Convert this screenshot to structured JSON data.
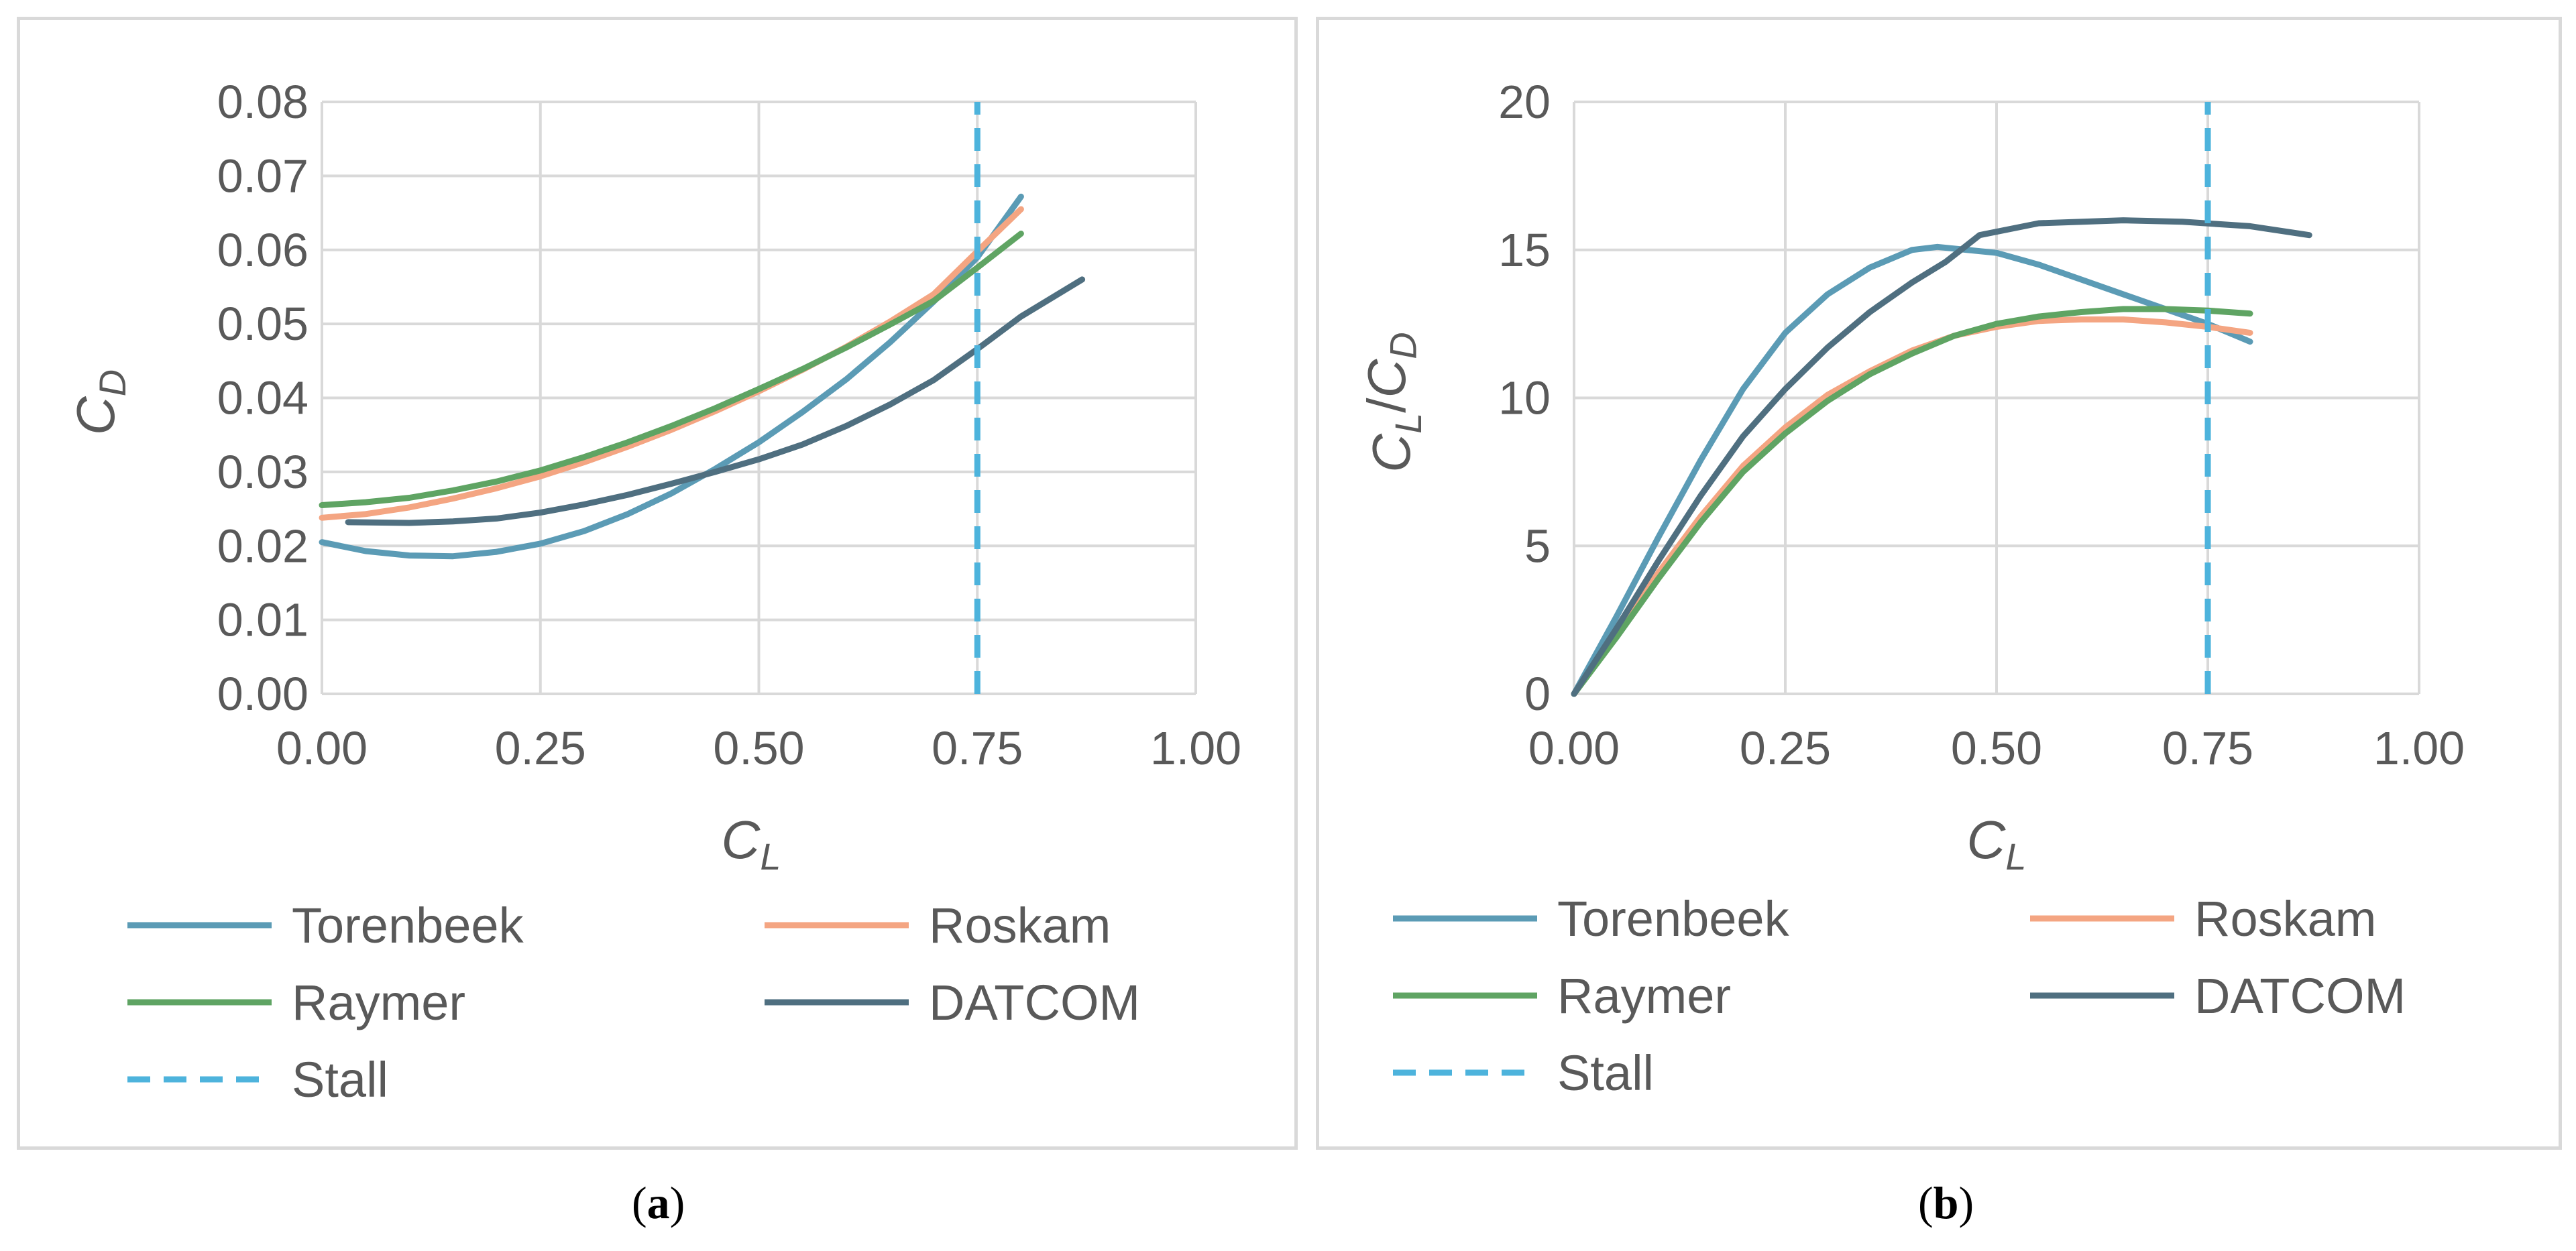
{
  "captions": [
    "a",
    "b"
  ],
  "chart_data": [
    {
      "type": "line",
      "panel": "a",
      "title": "",
      "xlabel": {
        "main": "C",
        "sub": "L"
      },
      "ylabel": {
        "main": "C",
        "sub": "D"
      },
      "xlim": [
        0,
        1
      ],
      "ylim": [
        0,
        0.08
      ],
      "xticks": [
        0,
        0.25,
        0.5,
        0.75,
        1.0
      ],
      "yticks": [
        0,
        0.01,
        0.02,
        0.03,
        0.04,
        0.05,
        0.06,
        0.07,
        0.08
      ],
      "xtick_labels": [
        "0.00",
        "0.25",
        "0.50",
        "0.75",
        "1.00"
      ],
      "ytick_labels": [
        "0.00",
        "0.01",
        "0.02",
        "0.03",
        "0.04",
        "0.05",
        "0.06",
        "0.07",
        "0.08"
      ],
      "grid": true,
      "legend_position": "bottom",
      "series": [
        {
          "name": "Torenbeek",
          "color": "#5b9bb5",
          "dashed": false,
          "points": [
            [
              0.0,
              0.0205
            ],
            [
              0.05,
              0.0193
            ],
            [
              0.1,
              0.0187
            ],
            [
              0.15,
              0.0186
            ],
            [
              0.2,
              0.0192
            ],
            [
              0.25,
              0.0203
            ],
            [
              0.3,
              0.022
            ],
            [
              0.35,
              0.0243
            ],
            [
              0.4,
              0.0271
            ],
            [
              0.45,
              0.0304
            ],
            [
              0.5,
              0.034
            ],
            [
              0.55,
              0.0381
            ],
            [
              0.6,
              0.0425
            ],
            [
              0.65,
              0.0475
            ],
            [
              0.7,
              0.053
            ],
            [
              0.75,
              0.059
            ],
            [
              0.8,
              0.0672
            ]
          ]
        },
        {
          "name": "Roskam",
          "color": "#f4a582",
          "dashed": false,
          "points": [
            [
              0.0,
              0.0238
            ],
            [
              0.05,
              0.0243
            ],
            [
              0.1,
              0.0252
            ],
            [
              0.15,
              0.0264
            ],
            [
              0.2,
              0.0278
            ],
            [
              0.25,
              0.0294
            ],
            [
              0.3,
              0.0313
            ],
            [
              0.35,
              0.0334
            ],
            [
              0.4,
              0.0357
            ],
            [
              0.45,
              0.0382
            ],
            [
              0.5,
              0.0409
            ],
            [
              0.55,
              0.0438
            ],
            [
              0.6,
              0.0469
            ],
            [
              0.65,
              0.0503
            ],
            [
              0.7,
              0.054
            ],
            [
              0.75,
              0.0598
            ],
            [
              0.8,
              0.0655
            ]
          ]
        },
        {
          "name": "Raymer",
          "color": "#5fa463",
          "dashed": false,
          "points": [
            [
              0.0,
              0.0255
            ],
            [
              0.05,
              0.0259
            ],
            [
              0.1,
              0.0265
            ],
            [
              0.15,
              0.0275
            ],
            [
              0.2,
              0.0287
            ],
            [
              0.25,
              0.0302
            ],
            [
              0.3,
              0.032
            ],
            [
              0.35,
              0.034
            ],
            [
              0.4,
              0.0362
            ],
            [
              0.45,
              0.0386
            ],
            [
              0.5,
              0.0412
            ],
            [
              0.55,
              0.0439
            ],
            [
              0.6,
              0.0468
            ],
            [
              0.65,
              0.0499
            ],
            [
              0.7,
              0.0531
            ],
            [
              0.75,
              0.0576
            ],
            [
              0.8,
              0.0622
            ]
          ]
        },
        {
          "name": "DATCOM",
          "color": "#4f6f80",
          "dashed": false,
          "points": [
            [
              0.03,
              0.0232
            ],
            [
              0.1,
              0.0231
            ],
            [
              0.15,
              0.0233
            ],
            [
              0.2,
              0.0237
            ],
            [
              0.25,
              0.0245
            ],
            [
              0.3,
              0.0256
            ],
            [
              0.35,
              0.0269
            ],
            [
              0.4,
              0.0284
            ],
            [
              0.45,
              0.03
            ],
            [
              0.5,
              0.0317
            ],
            [
              0.55,
              0.0337
            ],
            [
              0.6,
              0.0362
            ],
            [
              0.65,
              0.0391
            ],
            [
              0.7,
              0.0424
            ],
            [
              0.75,
              0.0466
            ],
            [
              0.8,
              0.051
            ],
            [
              0.87,
              0.056
            ]
          ]
        },
        {
          "name": "Stall",
          "color": "#4db3dc",
          "dashed": true,
          "points": [
            [
              0.75,
              0
            ],
            [
              0.75,
              0.08
            ]
          ]
        }
      ]
    },
    {
      "type": "line",
      "panel": "b",
      "title": "",
      "xlabel": {
        "main": "C",
        "sub": "L"
      },
      "ylabel": {
        "main": "C",
        "sub": "L",
        "sep": "/",
        "main2": "C",
        "sub2": "D"
      },
      "xlim": [
        0,
        1
      ],
      "ylim": [
        0,
        20
      ],
      "xticks": [
        0,
        0.25,
        0.5,
        0.75,
        1.0
      ],
      "yticks": [
        0,
        5,
        10,
        15,
        20
      ],
      "xtick_labels": [
        "0.00",
        "0.25",
        "0.50",
        "0.75",
        "1.00"
      ],
      "ytick_labels": [
        "0",
        "5",
        "10",
        "15",
        "20"
      ],
      "grid": true,
      "legend_position": "bottom",
      "series": [
        {
          "name": "Torenbeek",
          "color": "#5b9bb5",
          "dashed": false,
          "points": [
            [
              0.0,
              0.0
            ],
            [
              0.05,
              2.6
            ],
            [
              0.1,
              5.3
            ],
            [
              0.15,
              7.9
            ],
            [
              0.2,
              10.3
            ],
            [
              0.25,
              12.2
            ],
            [
              0.3,
              13.5
            ],
            [
              0.35,
              14.4
            ],
            [
              0.4,
              15.0
            ],
            [
              0.43,
              15.1
            ],
            [
              0.5,
              14.9
            ],
            [
              0.55,
              14.5
            ],
            [
              0.6,
              14.0
            ],
            [
              0.65,
              13.5
            ],
            [
              0.7,
              13.0
            ],
            [
              0.75,
              12.5
            ],
            [
              0.8,
              11.9
            ]
          ]
        },
        {
          "name": "Roskam",
          "color": "#f4a582",
          "dashed": false,
          "points": [
            [
              0.0,
              0.0
            ],
            [
              0.05,
              2.0
            ],
            [
              0.1,
              4.1
            ],
            [
              0.15,
              6.0
            ],
            [
              0.2,
              7.7
            ],
            [
              0.25,
              9.0
            ],
            [
              0.3,
              10.1
            ],
            [
              0.35,
              10.9
            ],
            [
              0.4,
              11.6
            ],
            [
              0.45,
              12.1
            ],
            [
              0.5,
              12.4
            ],
            [
              0.55,
              12.6
            ],
            [
              0.6,
              12.65
            ],
            [
              0.65,
              12.65
            ],
            [
              0.7,
              12.55
            ],
            [
              0.75,
              12.4
            ],
            [
              0.8,
              12.2
            ]
          ]
        },
        {
          "name": "Raymer",
          "color": "#5fa463",
          "dashed": false,
          "points": [
            [
              0.0,
              0.0
            ],
            [
              0.05,
              1.9
            ],
            [
              0.1,
              3.9
            ],
            [
              0.15,
              5.8
            ],
            [
              0.2,
              7.5
            ],
            [
              0.25,
              8.8
            ],
            [
              0.3,
              9.9
            ],
            [
              0.35,
              10.8
            ],
            [
              0.4,
              11.5
            ],
            [
              0.45,
              12.1
            ],
            [
              0.5,
              12.5
            ],
            [
              0.55,
              12.75
            ],
            [
              0.6,
              12.9
            ],
            [
              0.65,
              13.0
            ],
            [
              0.7,
              13.0
            ],
            [
              0.75,
              12.95
            ],
            [
              0.8,
              12.85
            ]
          ]
        },
        {
          "name": "DATCOM",
          "color": "#4f6f80",
          "dashed": false,
          "points": [
            [
              0.0,
              0.0
            ],
            [
              0.05,
              2.2
            ],
            [
              0.1,
              4.5
            ],
            [
              0.15,
              6.7
            ],
            [
              0.2,
              8.7
            ],
            [
              0.25,
              10.3
            ],
            [
              0.3,
              11.7
            ],
            [
              0.35,
              12.9
            ],
            [
              0.4,
              13.9
            ],
            [
              0.44,
              14.6
            ],
            [
              0.48,
              15.5
            ],
            [
              0.55,
              15.9
            ],
            [
              0.65,
              16.0
            ],
            [
              0.72,
              15.95
            ],
            [
              0.8,
              15.8
            ],
            [
              0.87,
              15.5
            ]
          ]
        },
        {
          "name": "Stall",
          "color": "#4db3dc",
          "dashed": true,
          "points": [
            [
              0.75,
              0
            ],
            [
              0.75,
              20
            ]
          ]
        }
      ]
    }
  ]
}
